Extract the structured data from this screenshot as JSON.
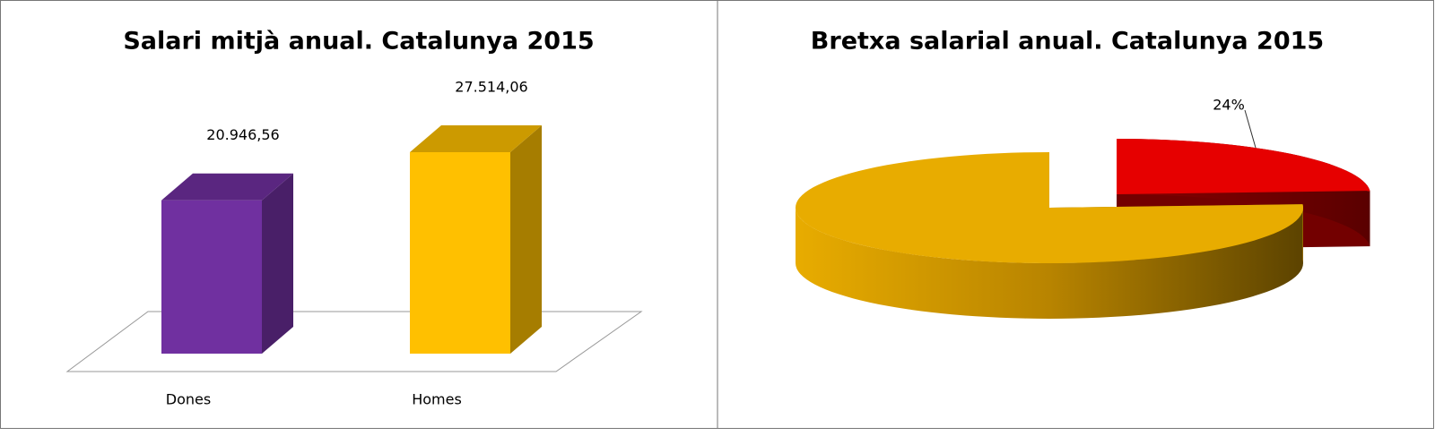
{
  "chart_data": [
    {
      "type": "bar3d",
      "title": "Salari mitjà anual. Catalunya 2015",
      "categories": [
        "Dones",
        "Homes"
      ],
      "values": [
        20946.56,
        27514.06
      ],
      "value_labels": [
        "20.946,56",
        "27.514,06"
      ],
      "colors": [
        "#7030a0",
        "#ffc000"
      ]
    },
    {
      "type": "pie3d",
      "title": "Bretxa salarial anual. Catalunya 2015",
      "values": [
        24,
        76
      ],
      "value_labels": [
        "24%",
        null
      ],
      "colors": [
        "#e60000",
        "#e8ac00"
      ]
    }
  ]
}
